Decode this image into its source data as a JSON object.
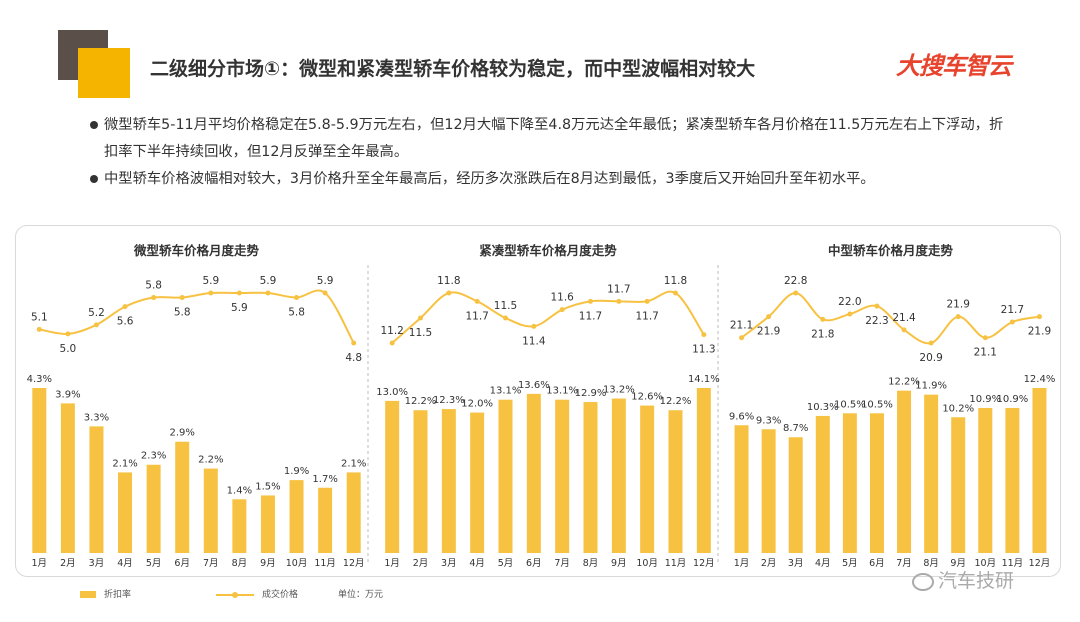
{
  "header": {
    "title": "二级细分市场①：微型和紧凑型轿车价格较为稳定，而中型波幅相对较大",
    "brand": "大搜车智云"
  },
  "bullets": [
    "微型轿车5-11月平均价格稳定在5.8-5.9万元左右，但12月大幅下降至4.8万元达全年最低；紧凑型轿车各月价格在11.5万元左右上下浮动，折扣率下半年持续回收，但12月反弹至全年最高。",
    "中型轿车价格波幅相对较大，3月价格升至全年最高后，经历多次涨跌后在8月达到最低，3季度后又开始回升至年初水平。"
  ],
  "legend": {
    "bar_label": "折扣率",
    "line_label": "成交价格",
    "unit_label": "单位：万元"
  },
  "watermark": "汽车技研",
  "colors": {
    "bar": "#f7c242",
    "line": "#f7c242",
    "text": "#333333"
  },
  "chart_data": [
    {
      "type": "bar+line",
      "title": "微型轿车价格月度走势",
      "categories": [
        "1月",
        "2月",
        "3月",
        "4月",
        "5月",
        "6月",
        "7月",
        "8月",
        "9月",
        "10月",
        "11月",
        "12月"
      ],
      "series": [
        {
          "name": "折扣率",
          "type": "bar",
          "unit": "%",
          "values": [
            4.3,
            3.9,
            3.3,
            2.1,
            2.3,
            2.9,
            2.2,
            1.4,
            1.5,
            1.9,
            1.7,
            2.1
          ]
        },
        {
          "name": "成交价格",
          "type": "line",
          "unit": "万元",
          "values": [
            5.1,
            5.0,
            5.2,
            5.6,
            5.8,
            5.8,
            5.9,
            5.9,
            5.9,
            5.8,
            5.9,
            4.8
          ]
        }
      ],
      "line_ylim": [
        4.8,
        5.9
      ]
    },
    {
      "type": "bar+line",
      "title": "紧凑型轿车价格月度走势",
      "categories": [
        "1月",
        "2月",
        "3月",
        "4月",
        "5月",
        "6月",
        "7月",
        "8月",
        "9月",
        "10月",
        "11月",
        "12月"
      ],
      "series": [
        {
          "name": "折扣率",
          "type": "bar",
          "unit": "%",
          "values": [
            13.0,
            12.2,
            12.3,
            12.0,
            13.1,
            13.6,
            13.1,
            12.9,
            13.2,
            12.6,
            12.2,
            14.1
          ]
        },
        {
          "name": "成交价格",
          "type": "line",
          "unit": "万元",
          "values": [
            11.2,
            11.5,
            11.8,
            11.7,
            11.5,
            11.4,
            11.6,
            11.7,
            11.7,
            11.7,
            11.8,
            11.3
          ]
        }
      ],
      "line_ylim": [
        11.2,
        11.8
      ]
    },
    {
      "type": "bar+line",
      "title": "中型轿车价格月度走势",
      "categories": [
        "1月",
        "2月",
        "3月",
        "4月",
        "5月",
        "6月",
        "7月",
        "8月",
        "9月",
        "10月",
        "11月",
        "12月"
      ],
      "series": [
        {
          "name": "折扣率",
          "type": "bar",
          "unit": "%",
          "values": [
            9.6,
            9.3,
            8.7,
            10.3,
            10.5,
            10.5,
            12.2,
            11.9,
            10.2,
            10.9,
            10.9,
            12.4
          ]
        },
        {
          "name": "成交价格",
          "type": "line",
          "unit": "万元",
          "values": [
            21.1,
            21.9,
            22.8,
            21.8,
            22.0,
            22.3,
            21.4,
            20.9,
            21.9,
            21.1,
            21.7,
            21.9
          ]
        }
      ],
      "line_ylim": [
        20.9,
        22.8
      ]
    }
  ]
}
